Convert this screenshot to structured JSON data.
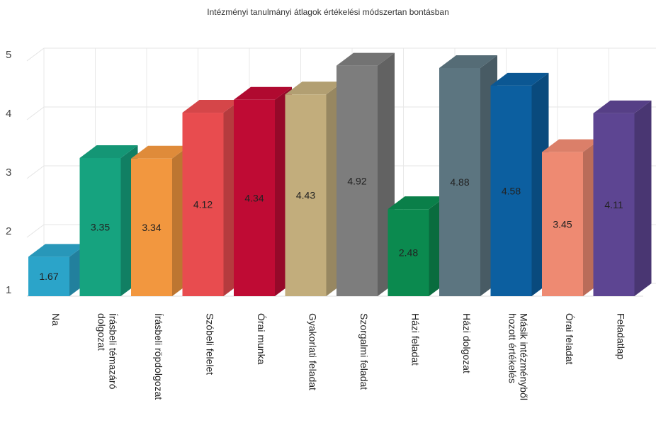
{
  "chart_data": {
    "type": "bar",
    "title": "Intézményi tanulmányi átlagok értékelési módszertan bontásban",
    "xlabel": "",
    "ylabel": "",
    "ylim": [
      1,
      5
    ],
    "yticks": [
      "1",
      "2",
      "3",
      "4",
      "5"
    ],
    "grid": true,
    "legend": "none",
    "style": "3d",
    "categories": [
      "Na",
      "Írásbeli témazáró dolgozat",
      "Írásbeli röpdolgozat",
      "Szóbeli felelet",
      "Órai munka",
      "Gyakorlati feladat",
      "Szorgalmi feladat",
      "Házi feladat",
      "Házi dolgozat",
      "Másik intézményből hozott értékelés",
      "Órai feladat",
      "Feladatlap"
    ],
    "category_lines": [
      [
        "Na"
      ],
      [
        "Írásbeli témazáró",
        "dolgozat"
      ],
      [
        "Írásbeli röpdolgozat"
      ],
      [
        "Szóbeli felelet"
      ],
      [
        "Órai munka"
      ],
      [
        "Gyakorlati feladat"
      ],
      [
        "Szorgalmi feladat"
      ],
      [
        "Házi feladat"
      ],
      [
        "Házi dolgozat"
      ],
      [
        "Másik intézményből",
        "hozott értékelés"
      ],
      [
        "Órai feladat"
      ],
      [
        "Feladatlap"
      ]
    ],
    "values": [
      1.67,
      3.35,
      3.34,
      4.12,
      4.34,
      4.43,
      4.92,
      2.48,
      4.88,
      4.58,
      3.45,
      4.11
    ],
    "data_labels": [
      "1.67",
      "3.35",
      "3.34",
      "4.12",
      "4.34",
      "4.43",
      "4.92",
      "2.48",
      "4.88",
      "4.58",
      "3.45",
      "4.11"
    ],
    "colors": [
      "#2ba4c9",
      "#16a37f",
      "#f2973f",
      "#e84c4f",
      "#bf0b34",
      "#c2ad7c",
      "#7d7d7d",
      "#0b8a4f",
      "#5c7580",
      "#0c5fa0",
      "#ee8a72",
      "#5d4592"
    ]
  }
}
